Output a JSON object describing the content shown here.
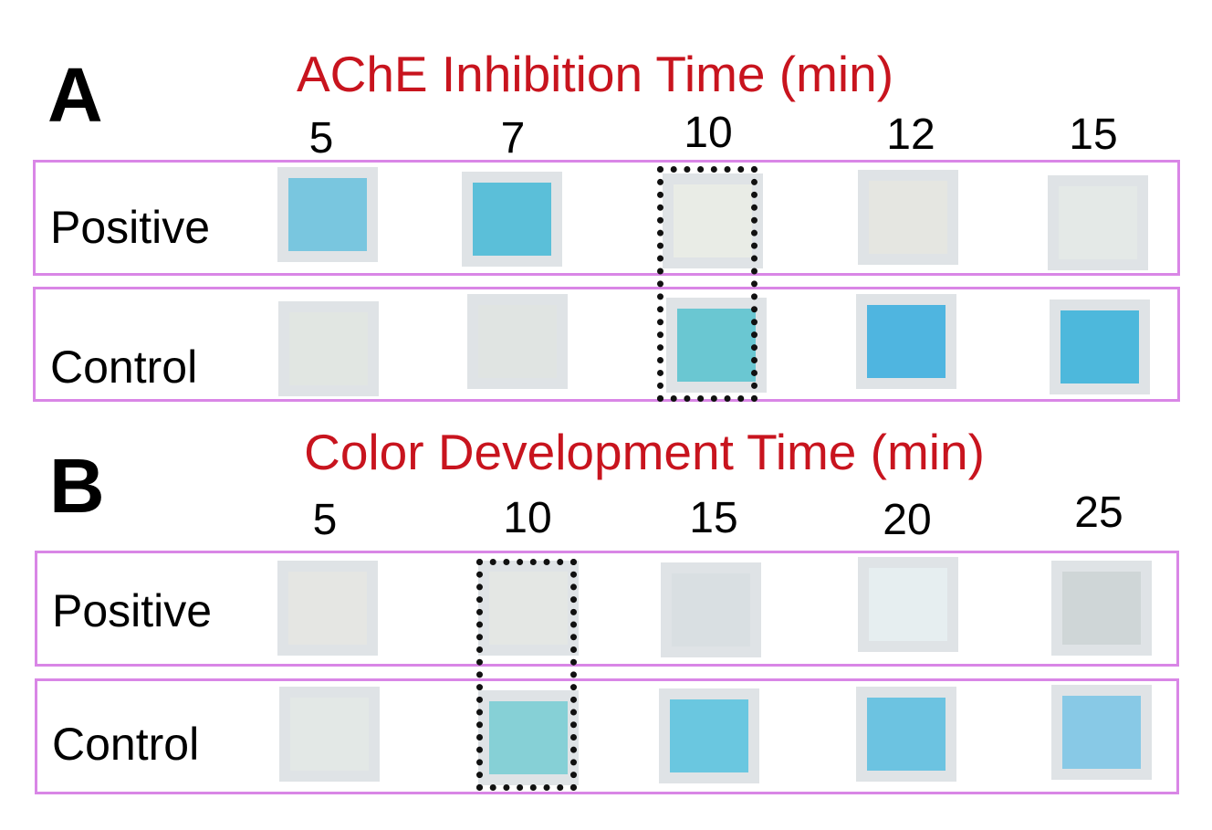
{
  "panels": [
    {
      "letter": "A",
      "title": "AChE Inhibition Time (min)",
      "columns": [
        "5",
        "7",
        "10",
        "12",
        "15"
      ],
      "highlighted_column": "10",
      "rows": [
        {
          "label": "Positive",
          "colors": [
            "#79c6df",
            "#5bbfd9",
            "#e9ece6",
            "#e5e6e1",
            "#e4e9e7"
          ]
        },
        {
          "label": "Control",
          "colors": [
            "#e1e6e2",
            "#e0e4e2",
            "#6ac7d2",
            "#4fb5e0",
            "#4db8dc"
          ]
        }
      ]
    },
    {
      "letter": "B",
      "title": "Color Development Time (min)",
      "columns": [
        "5",
        "10",
        "15",
        "20",
        "25"
      ],
      "highlighted_column": "10",
      "rows": [
        {
          "label": "Positive",
          "colors": [
            "#e5e6e3",
            "#e4e7e4",
            "#d9dfe2",
            "#e6eef0",
            "#cfd6d7"
          ]
        },
        {
          "label": "Control",
          "colors": [
            "#e3e8e6",
            "#86d0d6",
            "#6ac7e0",
            "#6cc3e1",
            "#88c9e6"
          ]
        }
      ]
    }
  ],
  "colors": {
    "title": "#c8141e",
    "row_border": "#d986e6",
    "highlight_border": "#111111",
    "tile_background": "#dfe3e6"
  }
}
